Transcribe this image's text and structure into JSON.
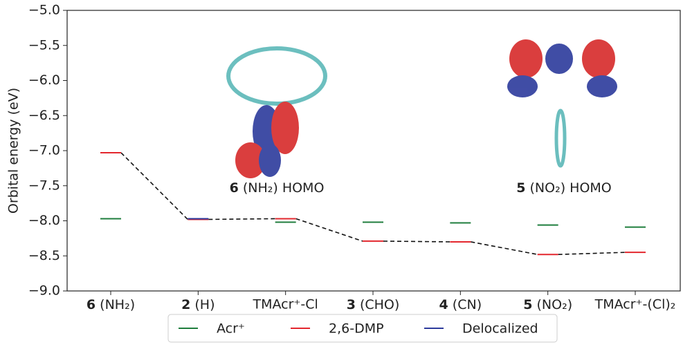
{
  "chart_data": {
    "type": "level",
    "y_label": "Orbital energy (eV)",
    "categories": [
      "6 (NH₂)",
      "2 (H)",
      "TMAcr⁺-Cl",
      "3 (CHO)",
      "4 (CN)",
      "5 (NO₂)",
      "TMAcr⁺-(Cl)₂"
    ],
    "series": [
      {
        "name": "Acr⁺",
        "color": "#1e7d3c",
        "values": [
          -7.97,
          null,
          -8.02,
          -8.02,
          -8.03,
          -8.06,
          -8.09
        ]
      },
      {
        "name": "2,6-DMP",
        "color": "#e3262d",
        "values": [
          -7.03,
          -7.98,
          -7.97,
          -8.29,
          -8.3,
          -8.48,
          -8.45
        ]
      },
      {
        "name": "Delocalized",
        "color": "#2c3a9c",
        "values": [
          null,
          -7.97,
          null,
          null,
          null,
          null,
          null
        ]
      }
    ],
    "connector_series": 1,
    "ylim": [
      -9,
      -5
    ],
    "yticks": [
      {
        "value": -9,
        "label": "−9.0"
      },
      {
        "value": -8.5,
        "label": "−8.5"
      },
      {
        "value": -8,
        "label": "−8.0"
      },
      {
        "value": -7.5,
        "label": "−7.5"
      },
      {
        "value": -7,
        "label": "−7.0"
      },
      {
        "value": -6.5,
        "label": "−6.5"
      },
      {
        "value": -6,
        "label": "−6.0"
      },
      {
        "value": -5.5,
        "label": "−5.5"
      },
      {
        "value": -5,
        "label": "−5.0"
      }
    ],
    "annotations": [
      "6 (NH₂) HOMO",
      "5 (NO₂) HOMO"
    ],
    "legend": "bottom"
  }
}
